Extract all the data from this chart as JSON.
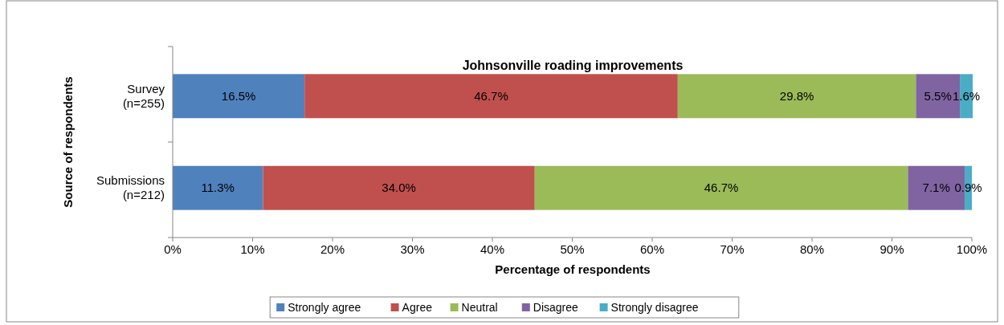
{
  "chart_data": {
    "type": "bar",
    "orientation": "horizontal",
    "stacked": true,
    "title": "Johnsonville roading improvements",
    "xlabel": "Percentage of respondents",
    "ylabel": "Source of respondents",
    "categories": [
      "Survey\n(n=255)",
      "Submissions\n(n=212)"
    ],
    "series": [
      {
        "name": "Strongly agree",
        "color": "#4f81bd",
        "values": [
          16.5,
          11.3
        ],
        "value_labels": [
          "16.5%",
          "11.3%"
        ]
      },
      {
        "name": "Agree",
        "color": "#c0504d",
        "values": [
          46.7,
          34.0
        ],
        "value_labels": [
          "46.7%",
          "34.0%"
        ]
      },
      {
        "name": "Neutral",
        "color": "#9bbb59",
        "values": [
          29.8,
          46.7
        ],
        "value_labels": [
          "29.8%",
          "46.7%"
        ]
      },
      {
        "name": "Disagree",
        "color": "#8064a2",
        "values": [
          5.5,
          7.1
        ],
        "value_labels": [
          "5.5%",
          "7.1%"
        ]
      },
      {
        "name": "Strongly disagree",
        "color": "#4bacc6",
        "values": [
          1.6,
          0.9
        ],
        "value_labels": [
          "1.6%",
          "0.9%"
        ]
      }
    ],
    "xlim": [
      0,
      100
    ],
    "xticks": [
      {
        "value": 0,
        "label": "0%"
      },
      {
        "value": 10,
        "label": "10%"
      },
      {
        "value": 20,
        "label": "20%"
      },
      {
        "value": 30,
        "label": "30%"
      },
      {
        "value": 40,
        "label": "40%"
      },
      {
        "value": 50,
        "label": "50%"
      },
      {
        "value": 60,
        "label": "60%"
      },
      {
        "value": 70,
        "label": "70%"
      },
      {
        "value": 80,
        "label": "80%"
      },
      {
        "value": 90,
        "label": "90%"
      },
      {
        "value": 100,
        "label": "100%"
      }
    ],
    "grid": false,
    "legend": "bottom"
  }
}
